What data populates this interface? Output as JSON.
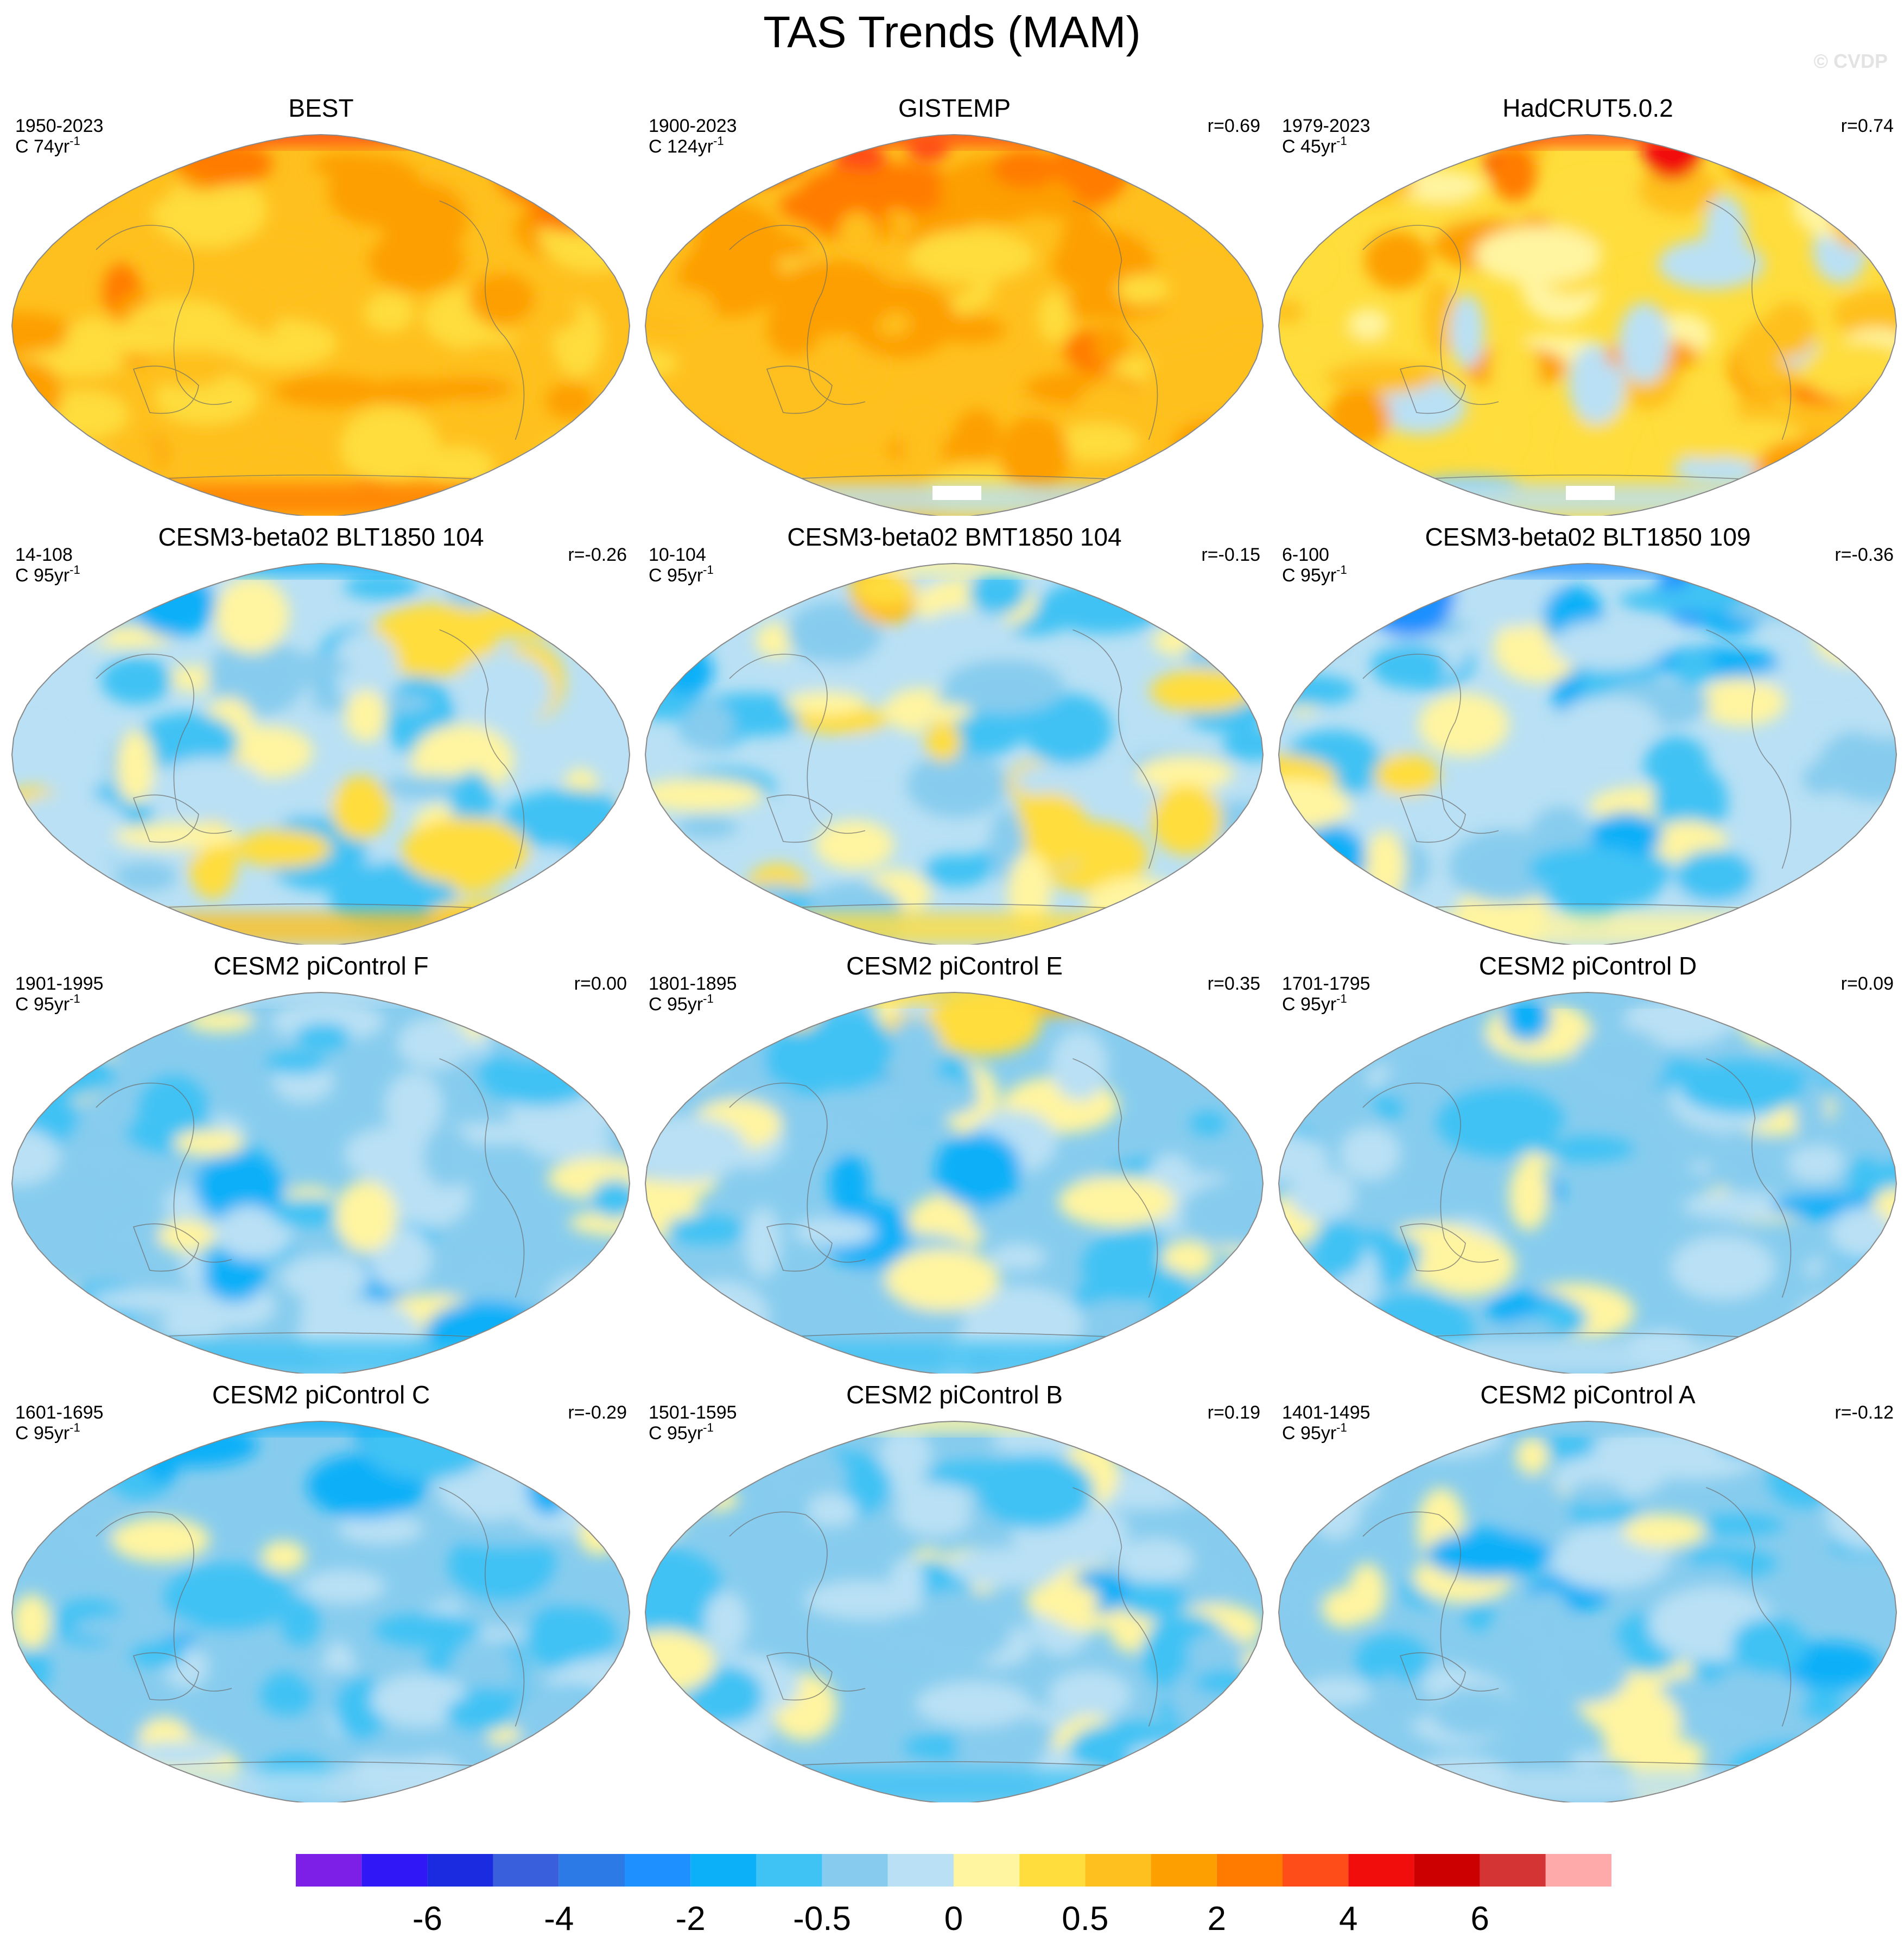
{
  "title": "TAS Trends (MAM)",
  "watermark": "© CVDP",
  "units_prefix": "C ",
  "units_suffix": "yr",
  "units_exponent": "-1",
  "panels": [
    {
      "title": "BEST",
      "period": "1950-2023",
      "trend_length": "74",
      "corr": "",
      "mean_level": 12,
      "variability": 1.6,
      "arctic_boost": 2.5,
      "antarctic": 1.5,
      "seed": 3,
      "missing_patch": false
    },
    {
      "title": "GISTEMP",
      "period": "1900-2023",
      "trend_length": "124",
      "corr": "r=0.69",
      "mean_level": 12.4,
      "variability": 1.2,
      "arctic_boost": 2.8,
      "antarctic": -3,
      "seed": 7,
      "missing_patch": true
    },
    {
      "title": "HadCRUT5.0.2",
      "period": "1979-2023",
      "trend_length": "45",
      "corr": "r=0.74",
      "mean_level": 11.3,
      "variability": 2.4,
      "arctic_boost": 3.6,
      "antarctic": -2,
      "seed": 11,
      "missing_patch": true
    },
    {
      "title": "CESM3-beta02 BLT1850 104",
      "period": "14-108",
      "trend_length": "95",
      "corr": "r=-0.26",
      "mean_level": 9.2,
      "variability": 2.4,
      "arctic_boost": -3.5,
      "antarctic": 2.8,
      "seed": 13,
      "missing_patch": false
    },
    {
      "title": "CESM3-beta02 BMT1850 104",
      "period": "10-104",
      "trend_length": "95",
      "corr": "r=-0.15",
      "mean_level": 8.8,
      "variability": 2.4,
      "arctic_boost": 1.2,
      "antarctic": 2.2,
      "seed": 17,
      "missing_patch": false
    },
    {
      "title": "CESM3-beta02 BLT1850 109",
      "period": "6-100",
      "trend_length": "95",
      "corr": "r=-0.36",
      "mean_level": 8.6,
      "variability": 2.4,
      "arctic_boost": -3.2,
      "antarctic": 1.8,
      "seed": 19,
      "missing_patch": false
    },
    {
      "title": "CESM2 piControl F",
      "period": "1901-1995",
      "trend_length": "95",
      "corr": "r=0.00",
      "mean_level": 8.3,
      "variability": 2.0,
      "arctic_boost": 0.6,
      "antarctic": -1.0,
      "seed": 23,
      "missing_patch": false
    },
    {
      "title": "CESM2 piControl E",
      "period": "1801-1895",
      "trend_length": "95",
      "corr": "r=0.35",
      "mean_level": 8.3,
      "variability": 2.0,
      "arctic_boost": 2.6,
      "antarctic": -1.0,
      "seed": 29,
      "missing_patch": false
    },
    {
      "title": "CESM2 piControl D",
      "period": "1701-1795",
      "trend_length": "95",
      "corr": "r=0.09",
      "mean_level": 8.3,
      "variability": 2.0,
      "arctic_boost": -0.8,
      "antarctic": 0.6,
      "seed": 31,
      "missing_patch": false
    },
    {
      "title": "CESM2 piControl C",
      "period": "1601-1695",
      "trend_length": "95",
      "corr": "r=-0.29",
      "mean_level": 8.3,
      "variability": 2.0,
      "arctic_boost": -2.8,
      "antarctic": 0.8,
      "seed": 37,
      "missing_patch": false
    },
    {
      "title": "CESM2 piControl B",
      "period": "1501-1595",
      "trend_length": "95",
      "corr": "r=0.19",
      "mean_level": 8.3,
      "variability": 2.0,
      "arctic_boost": 1.8,
      "antarctic": -1.2,
      "seed": 41,
      "missing_patch": false
    },
    {
      "title": "CESM2 piControl A",
      "period": "1401-1495",
      "trend_length": "95",
      "corr": "r=-0.12",
      "mean_level": 8.3,
      "variability": 2.0,
      "arctic_boost": -0.6,
      "antarctic": 0.8,
      "seed": 43,
      "missing_patch": false
    }
  ],
  "chart_data": {
    "type": "heatmap",
    "projection": "Robinson-like global, Pacific-centred",
    "variable": "TAS trend",
    "season": "MAM",
    "colorbar": {
      "colors": [
        "#7e1fe8",
        "#2f17f6",
        "#1b2be0",
        "#3a5fdc",
        "#2c7ae6",
        "#1e90ff",
        "#0cb0f8",
        "#3fc2f4",
        "#87ccee",
        "#b9e0f4",
        "#fff4a0",
        "#fedd3c",
        "#fec01e",
        "#fd9f00",
        "#ff7b00",
        "#ff4d19",
        "#f20d0d",
        "#cc0000",
        "#d43434",
        "#ffaaaa"
      ],
      "tick_labels": [
        "-6",
        "-4",
        "-2",
        "-0.5",
        "0",
        "0.5",
        "2",
        "4",
        "6"
      ],
      "tick_boundary_index": [
        2,
        4,
        6,
        8,
        10,
        12,
        14,
        16,
        18
      ]
    }
  }
}
